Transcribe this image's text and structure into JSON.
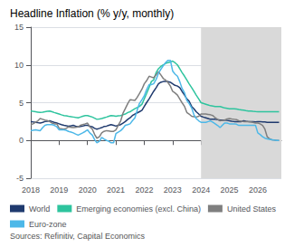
{
  "chart_data": {
    "type": "line",
    "title": "Headline Inflation (% y/y, monthly)",
    "annotations": [
      "Sources: Refinitiv, Capital Economics"
    ],
    "x": [
      2018.0,
      2018.08,
      2018.17,
      2018.25,
      2018.33,
      2018.42,
      2018.5,
      2018.58,
      2018.67,
      2018.75,
      2018.83,
      2018.92,
      2019.0,
      2019.08,
      2019.17,
      2019.25,
      2019.33,
      2019.42,
      2019.5,
      2019.58,
      2019.67,
      2019.75,
      2019.83,
      2019.92,
      2020.0,
      2020.08,
      2020.17,
      2020.25,
      2020.33,
      2020.42,
      2020.5,
      2020.58,
      2020.67,
      2020.75,
      2020.83,
      2020.92,
      2021.0,
      2021.08,
      2021.17,
      2021.25,
      2021.33,
      2021.42,
      2021.5,
      2021.58,
      2021.67,
      2021.75,
      2021.83,
      2021.92,
      2022.0,
      2022.08,
      2022.17,
      2022.25,
      2022.33,
      2022.42,
      2022.5,
      2022.58,
      2022.67,
      2022.75,
      2022.83,
      2022.92,
      2023.0,
      2023.08,
      2023.17,
      2023.25,
      2023.33,
      2023.42,
      2023.5,
      2023.58,
      2023.67,
      2023.75,
      2023.83,
      2023.92,
      2024.0,
      2024.08,
      2024.17,
      2024.25,
      2024.33,
      2024.42,
      2024.5,
      2024.58,
      2024.67,
      2024.75,
      2024.83,
      2024.92,
      2025.0,
      2025.08,
      2025.17,
      2025.25,
      2025.33,
      2025.42,
      2025.5,
      2025.58,
      2025.67,
      2025.75,
      2025.83,
      2025.92,
      2026.0,
      2026.08,
      2026.17,
      2026.25,
      2026.33,
      2026.42,
      2026.5,
      2026.58,
      2026.67,
      2026.75
    ],
    "series": [
      {
        "name": "World",
        "color": "#1f3a6e",
        "values": [
          2.5,
          2.45,
          2.4,
          2.35,
          2.3,
          2.4,
          2.5,
          2.55,
          2.6,
          2.5,
          2.4,
          2.3,
          2.2,
          2.1,
          2.0,
          1.95,
          1.9,
          1.95,
          2.0,
          1.9,
          1.8,
          1.85,
          1.9,
          2.0,
          2.0,
          1.9,
          1.8,
          1.6,
          1.5,
          1.6,
          1.7,
          1.85,
          1.9,
          2.0,
          2.1,
          2.0,
          1.9,
          2.0,
          2.1,
          2.3,
          2.5,
          2.8,
          3.0,
          3.3,
          3.5,
          3.65,
          3.8,
          4.0,
          4.5,
          5.0,
          5.5,
          6.0,
          6.5,
          7.0,
          7.5,
          7.7,
          7.8,
          7.8,
          7.8,
          7.7,
          7.5,
          7.3,
          7.2,
          7.0,
          6.5,
          6.0,
          5.5,
          5.2,
          4.5,
          4.2,
          3.8,
          3.5,
          3.2,
          3.1,
          3.0,
          2.9,
          2.8,
          2.8,
          2.8,
          2.75,
          2.7,
          2.7,
          2.7,
          2.65,
          2.6,
          2.55,
          2.5,
          2.5,
          2.5,
          2.5,
          2.6,
          2.55,
          2.5,
          2.5,
          2.5,
          2.45,
          2.5,
          2.5,
          2.45,
          2.45,
          2.4,
          2.4,
          2.4,
          2.4,
          2.4,
          2.4
        ]
      },
      {
        "name": "Emerging economies (excl. China)",
        "color": "#2ec49e",
        "values": [
          3.9,
          3.85,
          3.8,
          3.75,
          3.7,
          3.75,
          3.8,
          3.85,
          3.9,
          3.8,
          3.7,
          3.6,
          3.5,
          3.4,
          3.3,
          3.25,
          3.2,
          3.15,
          3.1,
          3.05,
          3.0,
          3.1,
          3.2,
          3.3,
          3.3,
          3.2,
          3.1,
          2.95,
          2.8,
          2.85,
          2.9,
          3.0,
          3.1,
          3.2,
          3.3,
          3.25,
          3.2,
          3.25,
          3.3,
          3.4,
          3.5,
          3.7,
          3.8,
          4.0,
          4.2,
          4.35,
          4.5,
          4.8,
          5.5,
          6.2,
          7.0,
          7.8,
          8.0,
          9.0,
          9.5,
          9.8,
          10.0,
          10.2,
          10.3,
          10.4,
          10.5,
          10.3,
          10.0,
          9.5,
          9.0,
          8.5,
          8.0,
          7.5,
          7.0,
          6.5,
          6.0,
          5.5,
          5.0,
          4.9,
          4.8,
          4.7,
          4.6,
          4.55,
          4.5,
          4.5,
          4.5,
          4.4,
          4.3,
          4.25,
          4.2,
          4.2,
          4.2,
          4.15,
          4.1,
          4.05,
          4.0,
          3.95,
          3.9,
          3.88,
          3.85,
          3.82,
          3.8,
          3.8,
          3.8,
          3.8,
          3.8,
          3.8,
          3.8,
          3.8,
          3.8,
          3.8
        ]
      },
      {
        "name": "United States",
        "color": "#7f7f7f",
        "values": [
          2.1,
          2.2,
          2.4,
          2.6,
          2.9,
          2.8,
          2.7,
          2.65,
          2.5,
          2.3,
          2.2,
          2.2,
          1.6,
          1.55,
          1.5,
          1.6,
          1.8,
          1.75,
          1.7,
          1.75,
          1.8,
          2.0,
          2.1,
          2.2,
          2.3,
          1.8,
          1.5,
          0.8,
          0.3,
          0.5,
          1.0,
          1.2,
          1.3,
          1.25,
          1.2,
          1.2,
          1.4,
          2.0,
          2.6,
          3.6,
          4.2,
          4.9,
          5.4,
          5.35,
          5.3,
          5.7,
          6.2,
          6.8,
          7.5,
          7.9,
          8.5,
          8.4,
          8.3,
          8.7,
          9.1,
          8.7,
          8.2,
          8.0,
          7.7,
          7.2,
          6.5,
          6.3,
          6.0,
          5.5,
          5.0,
          4.5,
          3.7,
          3.5,
          3.2,
          3.15,
          3.1,
          3.2,
          3.5,
          3.5,
          3.5,
          3.45,
          3.4,
          3.3,
          3.0,
          2.8,
          2.6,
          2.65,
          2.7,
          2.85,
          2.9,
          2.85,
          2.8,
          2.75,
          2.6,
          2.55,
          2.5,
          2.5,
          2.5,
          2.45,
          2.4,
          2.3,
          2.3,
          2.2,
          2.0,
          1.5,
          0.5,
          0.2,
          0.1,
          0.05,
          0.0,
          0.0
        ]
      },
      {
        "name": "Euro-zone",
        "color": "#4db8e8",
        "values": [
          1.3,
          1.35,
          1.4,
          1.35,
          1.3,
          1.7,
          2.0,
          2.1,
          2.1,
          2.1,
          2.0,
          1.8,
          1.4,
          1.4,
          1.4,
          1.35,
          1.2,
          1.1,
          1.0,
          0.85,
          0.7,
          0.85,
          1.0,
          1.2,
          1.4,
          1.0,
          0.7,
          0.1,
          -0.3,
          -0.1,
          0.4,
          0.2,
          0.0,
          -0.1,
          -0.3,
          -0.3,
          0.9,
          1.1,
          1.3,
          1.6,
          2.0,
          2.1,
          2.2,
          2.6,
          3.0,
          4.0,
          4.9,
          5.4,
          5.9,
          6.7,
          7.4,
          7.4,
          7.5,
          8.1,
          8.9,
          9.4,
          9.9,
          10.3,
          10.6,
          10.6,
          9.2,
          8.8,
          8.5,
          7.8,
          6.9,
          6.3,
          5.3,
          4.9,
          4.3,
          3.4,
          2.9,
          2.6,
          2.4,
          2.4,
          2.4,
          2.5,
          2.6,
          2.4,
          2.2,
          2.0,
          1.7,
          2.0,
          2.3,
          2.3,
          2.2,
          2.2,
          2.2,
          2.15,
          2.0,
          2.0,
          2.0,
          2.0,
          2.0,
          2.0,
          2.0,
          2.0,
          1.0,
          0.8,
          0.5,
          0.3,
          0.2,
          0.15,
          0.1,
          0.05,
          0.0,
          0.0
        ]
      }
    ],
    "shade": {
      "x": [
        2024.0,
        2026.83
      ],
      "color": "#d9d9d9"
    },
    "xlim": [
      2018.0,
      2026.83
    ],
    "xticks": [
      2018,
      2019,
      2020,
      2021,
      2022,
      2023,
      2024,
      2025,
      2026
    ],
    "ylim": [
      -5,
      15
    ],
    "yticks": [
      -5,
      0,
      5,
      10,
      15
    ],
    "grid": true,
    "legend": "bottom"
  }
}
